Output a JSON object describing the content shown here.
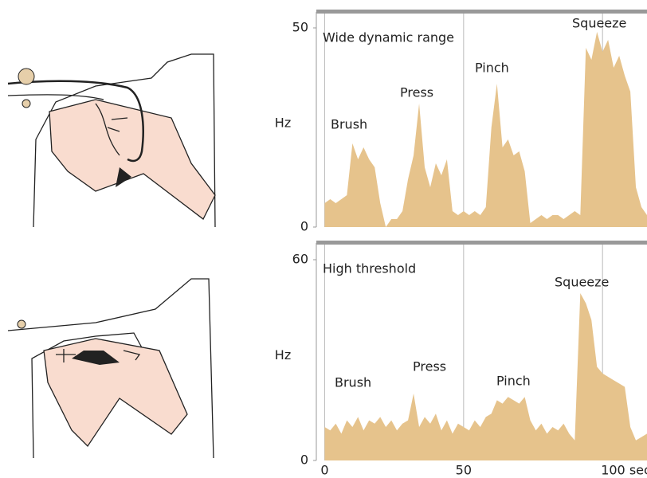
{
  "chart_data": [
    {
      "type": "area",
      "ylabel": "Hz",
      "ylim": [
        0,
        54
      ],
      "yticks": [
        0,
        50
      ],
      "xlim": [
        -3,
        116
      ],
      "color": "#e6c38c",
      "annotations": [
        "Wide dynamic range",
        "Brush",
        "Press",
        "Pinch",
        "Squeeze"
      ],
      "x": [
        0,
        2,
        4,
        6,
        8,
        10,
        12,
        14,
        16,
        18,
        20,
        22,
        24,
        26,
        28,
        30,
        32,
        34,
        36,
        38,
        40,
        42,
        44,
        46,
        48,
        50,
        52,
        54,
        56,
        58,
        60,
        62,
        64,
        66,
        68,
        70,
        72,
        74,
        76,
        78,
        80,
        82,
        84,
        86,
        88,
        90,
        92,
        94,
        96,
        98,
        100,
        102,
        104,
        106,
        108,
        110,
        112,
        114,
        116
      ],
      "values": [
        6,
        7,
        6,
        7,
        8,
        21,
        17,
        20,
        17,
        15,
        6,
        0,
        2,
        2,
        4,
        12,
        18,
        31,
        15,
        10,
        16,
        13,
        17,
        4,
        3,
        4,
        3,
        4,
        3,
        5,
        25,
        36,
        20,
        22,
        18,
        19,
        14,
        1,
        2,
        3,
        2,
        3,
        3,
        2,
        3,
        4,
        3,
        45,
        42,
        49,
        44,
        47,
        40,
        43,
        38,
        34,
        10,
        5,
        3
      ]
    },
    {
      "type": "area",
      "ylabel": "Hz",
      "ylim": [
        0,
        65
      ],
      "yticks": [
        0,
        60
      ],
      "xlim": [
        -3,
        116
      ],
      "color": "#e6c38c",
      "xticks": [
        0,
        50,
        {
          "value": 100,
          "label": "100 sec"
        }
      ],
      "annotations": [
        "High threshold",
        "Brush",
        "Press",
        "Pinch",
        "Squeeze"
      ],
      "x": [
        0,
        2,
        4,
        6,
        8,
        10,
        12,
        14,
        16,
        18,
        20,
        22,
        24,
        26,
        28,
        30,
        32,
        34,
        36,
        38,
        40,
        42,
        44,
        46,
        48,
        50,
        52,
        54,
        56,
        58,
        60,
        62,
        64,
        66,
        68,
        70,
        72,
        74,
        76,
        78,
        80,
        82,
        84,
        86,
        88,
        90,
        92,
        94,
        96,
        98,
        100,
        102,
        104,
        106,
        108,
        110,
        112,
        114,
        116
      ],
      "values": [
        10,
        9,
        11,
        8,
        12,
        10,
        13,
        9,
        12,
        11,
        13,
        10,
        12,
        9,
        11,
        12,
        20,
        10,
        13,
        11,
        14,
        9,
        12,
        8,
        11,
        10,
        9,
        12,
        10,
        13,
        14,
        18,
        17,
        19,
        18,
        17,
        19,
        12,
        9,
        11,
        8,
        10,
        9,
        11,
        8,
        6,
        50,
        47,
        42,
        28,
        26,
        25,
        24,
        23,
        22,
        10,
        6,
        7,
        8
      ]
    }
  ]
}
